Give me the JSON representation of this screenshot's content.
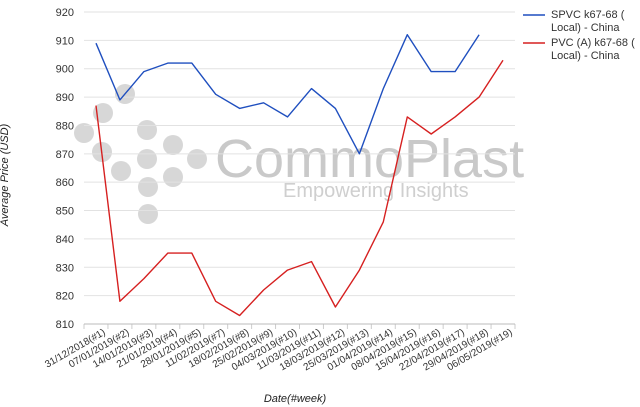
{
  "chart_data": {
    "type": "line",
    "title": "",
    "xlabel": "Date(#week)",
    "ylabel": "Average Price (USD)",
    "ylim": [
      810,
      920
    ],
    "yticks": [
      810,
      820,
      830,
      840,
      850,
      860,
      870,
      880,
      890,
      900,
      910,
      920
    ],
    "grid": true,
    "legend_position": "right",
    "categories": [
      "31/12/2018(#1)",
      "07/01/2019(#2)",
      "14/01/2019(#3)",
      "21/01/2019(#4)",
      "28/01/2019(#5)",
      "11/02/2019(#7)",
      "18/02/2019(#8)",
      "25/02/2019(#9)",
      "04/03/2019(#10)",
      "11/03/2019(#11)",
      "18/03/2019(#12)",
      "25/03/2019(#13)",
      "01/04/2019(#14)",
      "08/04/2019(#15)",
      "15/04/2019(#16)",
      "22/04/2019(#17)",
      "29/04/2019(#18)",
      "06/05/2019(#19)"
    ],
    "series": [
      {
        "name": "SPVC k67-68 ( Local) - China",
        "legend_lines": [
          "SPVC k67-68 (",
          "Local) - China"
        ],
        "color": "#1f4fbf",
        "values": [
          909,
          889,
          899,
          902,
          902,
          891,
          886,
          888,
          883,
          893,
          886,
          870,
          893,
          912,
          899,
          899,
          912,
          null
        ]
      },
      {
        "name": "PVC (A) k67-68 ( Local) - China",
        "legend_lines": [
          "PVC (A) k67-68 (",
          "Local) - China"
        ],
        "color": "#d62020",
        "values": [
          887,
          818,
          826,
          835,
          835,
          818,
          813,
          822,
          829,
          832,
          816,
          829,
          846,
          883,
          877,
          883,
          890,
          903
        ]
      }
    ]
  },
  "watermark": {
    "brand_left": "Commo",
    "brand_right": "Plast",
    "tagline": "Empowering Insights",
    "color": "#c9c9c9"
  }
}
